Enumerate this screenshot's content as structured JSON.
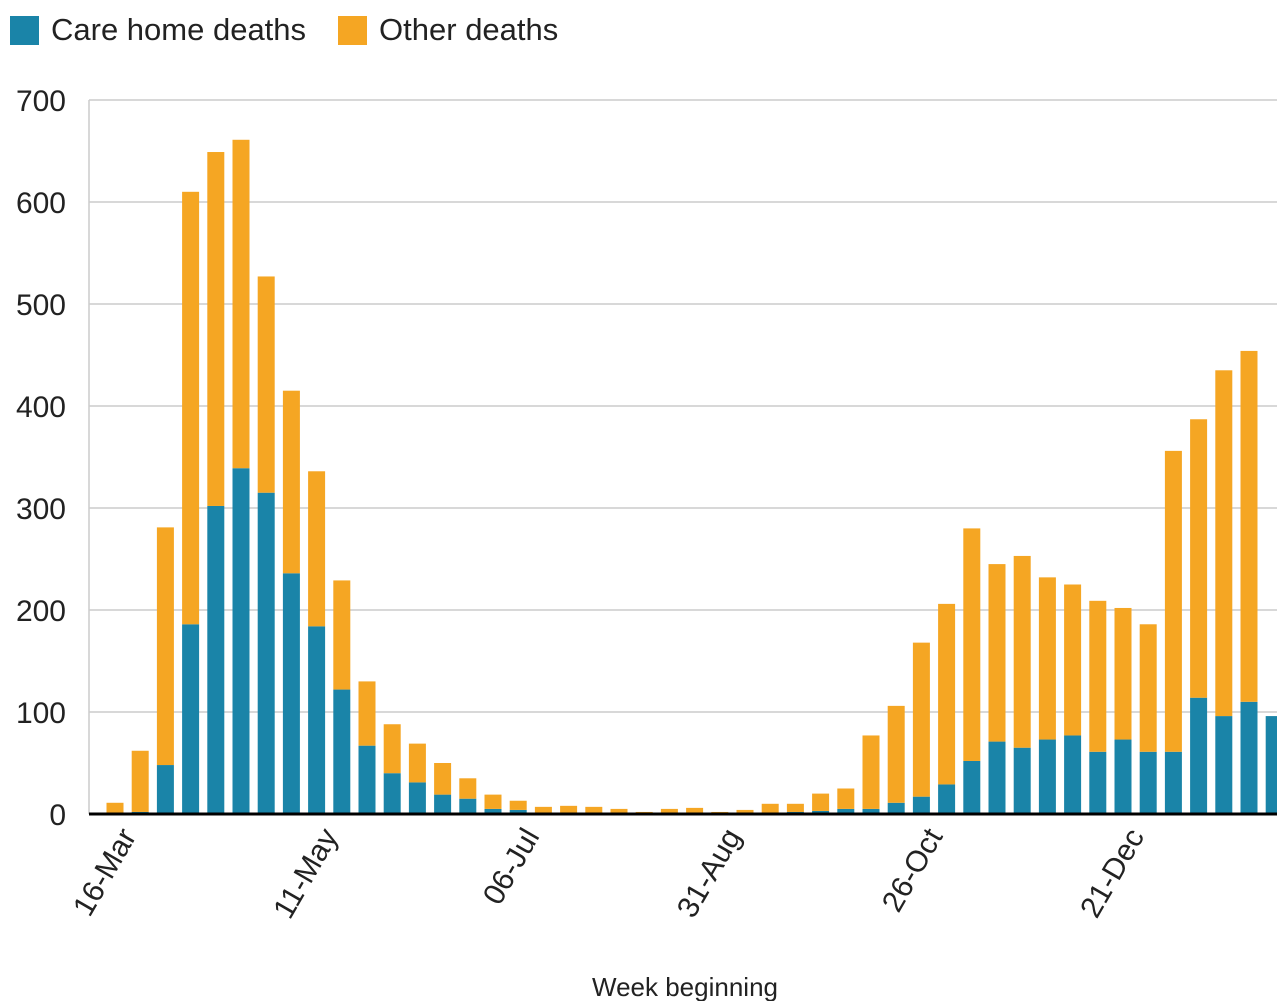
{
  "chart_data": {
    "type": "bar",
    "stacked": true,
    "title": "",
    "xlabel": "Week beginning",
    "ylabel": "",
    "ylim": [
      0,
      700
    ],
    "yticks": [
      0,
      100,
      200,
      300,
      400,
      500,
      600,
      700
    ],
    "grid": "horizontal",
    "legend_position": "top-left",
    "tick_labels": [
      {
        "index": 0,
        "label": "16-Mar"
      },
      {
        "index": 8,
        "label": "11-May"
      },
      {
        "index": 16,
        "label": "06-Jul"
      },
      {
        "index": 24,
        "label": "31-Aug"
      },
      {
        "index": 32,
        "label": "26-Oct"
      },
      {
        "index": 40,
        "label": "21-Dec"
      }
    ],
    "series": [
      {
        "name": "Care home deaths",
        "color": "#1a84a8",
        "values": [
          1,
          2,
          48,
          186,
          302,
          339,
          315,
          236,
          184,
          122,
          67,
          40,
          31,
          19,
          15,
          5,
          4,
          1,
          1,
          1,
          1,
          0,
          1,
          1,
          0,
          0,
          1,
          2,
          3,
          5,
          5,
          11,
          17,
          29,
          52,
          71,
          65,
          73,
          77,
          61,
          73,
          61,
          61,
          114,
          96,
          110,
          96
        ]
      },
      {
        "name": "Other deaths",
        "color": "#f5a623",
        "values": [
          10,
          60,
          233,
          424,
          347,
          322,
          212,
          179,
          152,
          107,
          63,
          48,
          38,
          31,
          20,
          14,
          9,
          6,
          7,
          6,
          4,
          2,
          4,
          5,
          2,
          4,
          9,
          8,
          17,
          20,
          72,
          95,
          151,
          177,
          228,
          174,
          188,
          159,
          148,
          148,
          129,
          125,
          295,
          273,
          339,
          344,
          0
        ]
      }
    ]
  }
}
